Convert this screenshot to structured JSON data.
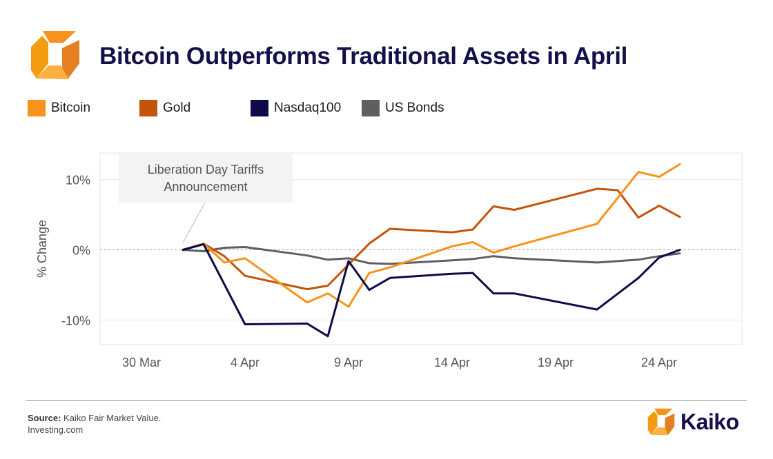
{
  "header": {
    "title": "Bitcoin Outperforms Traditional Assets in April"
  },
  "legend": [
    {
      "label": "Bitcoin",
      "color": "#f7931a"
    },
    {
      "label": "Gold",
      "color": "#c4540a"
    },
    {
      "label": "Nasdaq100",
      "color": "#0d0b48"
    },
    {
      "label": "US Bonds",
      "color": "#5f5f5f"
    }
  ],
  "chart_data": {
    "type": "line",
    "title": "Bitcoin Outperforms Traditional Assets in April",
    "xlabel": "",
    "ylabel": "% Change",
    "xlim": [
      -2,
      29
    ],
    "ylim": [
      -13.5,
      13.8
    ],
    "x_ticks": [
      {
        "x": 0,
        "label": "30 Mar"
      },
      {
        "x": 5,
        "label": "4 Apr"
      },
      {
        "x": 10,
        "label": "9 Apr"
      },
      {
        "x": 15,
        "label": "14 Apr"
      },
      {
        "x": 20,
        "label": "19 Apr"
      },
      {
        "x": 25,
        "label": "24 Apr"
      }
    ],
    "y_ticks": [
      {
        "y": 10,
        "label": "10%"
      },
      {
        "y": 0,
        "label": "0%"
      },
      {
        "y": -10,
        "label": "-10%"
      }
    ],
    "annotation": {
      "x": 2,
      "y": 1,
      "text": [
        "Liberation Day Tariffs",
        "Announcement"
      ]
    },
    "series": [
      {
        "name": "Bitcoin",
        "color": "#f7931a",
        "x": [
          2,
          3,
          4,
          5,
          8,
          9,
          10,
          11,
          12,
          15,
          16,
          17,
          18,
          22,
          24,
          25,
          26
        ],
        "y": [
          0,
          0.9,
          -1.8,
          -1.2,
          -7.5,
          -6.2,
          -8.1,
          -3.3,
          -2.5,
          0.5,
          1.1,
          -0.4,
          0.5,
          3.7,
          11.1,
          10.4,
          12.2
        ]
      },
      {
        "name": "Gold",
        "color": "#c4540a",
        "x": [
          2,
          3,
          4,
          5,
          8,
          9,
          10,
          11,
          12,
          15,
          16,
          17,
          18,
          22,
          23,
          24,
          25,
          26
        ],
        "y": [
          0,
          0.9,
          -0.9,
          -3.7,
          -5.6,
          -5.1,
          -2.1,
          0.9,
          3.0,
          2.5,
          2.9,
          6.2,
          5.7,
          8.7,
          8.5,
          4.6,
          6.3,
          4.7
        ]
      },
      {
        "name": "Nasdaq100",
        "color": "#0d0b48",
        "x": [
          2,
          3,
          5,
          8,
          9,
          10,
          11,
          12,
          15,
          16,
          17,
          18,
          22,
          24,
          25,
          26
        ],
        "y": [
          0,
          0.8,
          -10.6,
          -10.5,
          -12.3,
          -1.6,
          -5.7,
          -4.0,
          -3.4,
          -3.3,
          -6.2,
          -6.2,
          -8.5,
          -4.0,
          -1.1,
          0
        ]
      },
      {
        "name": "US Bonds",
        "color": "#5f5f5f",
        "x": [
          2,
          3,
          4,
          5,
          8,
          9,
          10,
          11,
          12,
          15,
          16,
          17,
          18,
          22,
          24,
          25,
          26
        ],
        "y": [
          0,
          -0.2,
          0.3,
          0.4,
          -0.8,
          -1.4,
          -1.2,
          -1.9,
          -2.0,
          -1.5,
          -1.3,
          -0.9,
          -1.2,
          -1.8,
          -1.4,
          -0.9,
          -0.5
        ]
      }
    ]
  },
  "footer": {
    "source_label": "Source:",
    "source_text": "Kaiko Fair Market Value.",
    "source_line2": "Investing.com",
    "brand": "Kaiko"
  }
}
